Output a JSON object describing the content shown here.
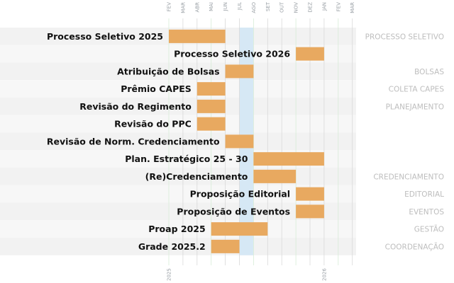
{
  "chart_data": {
    "type": "gantt",
    "months": [
      "FEV",
      "MAR",
      "ABR",
      "MAI",
      "JUN",
      "JUL",
      "AGO",
      "SET",
      "OUT",
      "NOV",
      "DEZ",
      "JAN",
      "FEV",
      "MAR"
    ],
    "year_ticks": [
      {
        "month_index": 0,
        "label": "2025"
      },
      {
        "month_index": 11,
        "label": "2026"
      }
    ],
    "highlight": {
      "start": 5,
      "end": 6
    },
    "tasks": [
      {
        "label": "Processo Seletivo 2025",
        "start": 0,
        "end": 4,
        "category": "PROCESSO SELETIVO"
      },
      {
        "label": "Processo Seletivo 2026",
        "start": 9,
        "end": 11,
        "category": ""
      },
      {
        "label": "Atribuição de Bolsas",
        "start": 4,
        "end": 6,
        "category": "BOLSAS"
      },
      {
        "label": "Prêmio CAPES",
        "start": 2,
        "end": 4,
        "category": "COLETA CAPES"
      },
      {
        "label": "Revisão do Regimento",
        "start": 2,
        "end": 4,
        "category": "PLANEJAMENTO"
      },
      {
        "label": "Revisão do PPC",
        "start": 2,
        "end": 4,
        "category": ""
      },
      {
        "label": "Revisão de Norm. Credenciamento",
        "start": 4,
        "end": 6,
        "category": ""
      },
      {
        "label": "Plan. Estratégico 25 - 30",
        "start": 6,
        "end": 11,
        "category": ""
      },
      {
        "label": "(Re)Credenciamento",
        "start": 6,
        "end": 9,
        "category": "CREDENCIAMENTO"
      },
      {
        "label": "Proposição Editorial",
        "start": 9,
        "end": 11,
        "category": "EDITORIAL"
      },
      {
        "label": "Proposição de Eventos",
        "start": 9,
        "end": 11,
        "category": "EVENTOS"
      },
      {
        "label": "Proap 2025",
        "start": 3,
        "end": 7,
        "category": "GESTÃO"
      },
      {
        "label": "Grade 2025.2",
        "start": 3,
        "end": 5,
        "category": "COORDENAÇÃO"
      }
    ],
    "colors": {
      "bar": "#e8a960",
      "highlight": "#d6e8f5",
      "row_even": "#f2f2f2",
      "row_odd": "#f7f7f7",
      "grid": "#d9d9d9",
      "grid_quarter": "#d7ecd7",
      "category_text": "#bdbdbd"
    }
  }
}
